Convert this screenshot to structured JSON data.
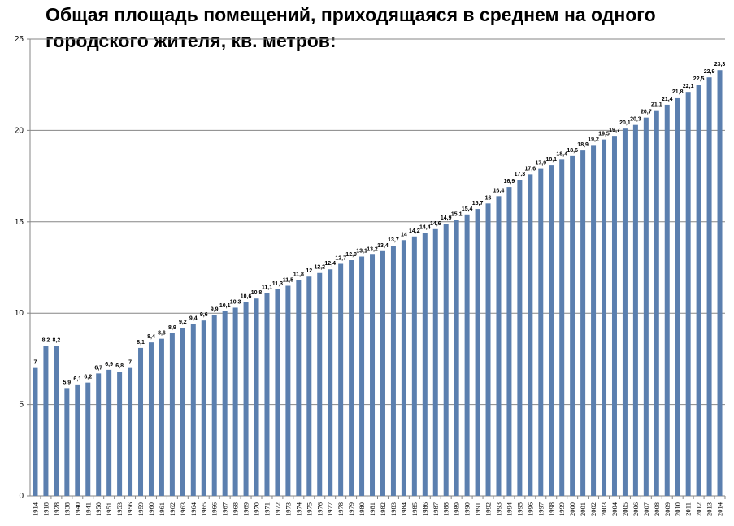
{
  "chart_data": {
    "type": "bar",
    "title": "Общая площадь помещений, приходящаяся в среднем на одного городского жителя, кв. метров:",
    "xlabel": "",
    "ylabel": "",
    "ylim": [
      0,
      25
    ],
    "yticks": [
      0,
      5,
      10,
      15,
      20,
      25
    ],
    "grid": true,
    "bar_color": "#5b7faf",
    "data_labels": true,
    "decimal_separator": ",",
    "categories": [
      "1914",
      "1918",
      "1928",
      "1938",
      "1940",
      "1941",
      "1950",
      "1951",
      "1953",
      "1956",
      "1959",
      "1960",
      "1961",
      "1962",
      "1963",
      "1964",
      "1965",
      "1966",
      "1967",
      "1968",
      "1969",
      "1970",
      "1971",
      "1972",
      "1973",
      "1974",
      "1975",
      "1976",
      "1977",
      "1978",
      "1979",
      "1980",
      "1981",
      "1982",
      "1983",
      "1984",
      "1985",
      "1986",
      "1987",
      "1988",
      "1989",
      "1990",
      "1991",
      "1992",
      "1993",
      "1994",
      "1995",
      "1996",
      "1997",
      "1998",
      "1999",
      "2000",
      "2001",
      "2002",
      "2003",
      "2004",
      "2005",
      "2006",
      "2007",
      "2008",
      "2009",
      "2010",
      "2011",
      "2012",
      "2013",
      "2014"
    ],
    "values": [
      7,
      8.2,
      8.2,
      5.9,
      6.1,
      6.2,
      6.7,
      6.9,
      6.8,
      7,
      8.1,
      8.4,
      8.6,
      8.9,
      9.2,
      9.4,
      9.6,
      9.9,
      10.1,
      10.3,
      10.6,
      10.8,
      11.1,
      11.3,
      11.5,
      11.8,
      12,
      12.2,
      12.4,
      12.7,
      12.9,
      13.1,
      13.2,
      13.4,
      13.7,
      14,
      14.2,
      14.4,
      14.6,
      14.9,
      15.1,
      15.4,
      15.7,
      16,
      16.4,
      16.9,
      17.3,
      17.6,
      17.9,
      18.1,
      18.4,
      18.6,
      18.9,
      19.2,
      19.5,
      19.7,
      20.1,
      20.3,
      20.7,
      21.1,
      21.4,
      21.8,
      22.1,
      22.5,
      22.9,
      23.3
    ]
  }
}
